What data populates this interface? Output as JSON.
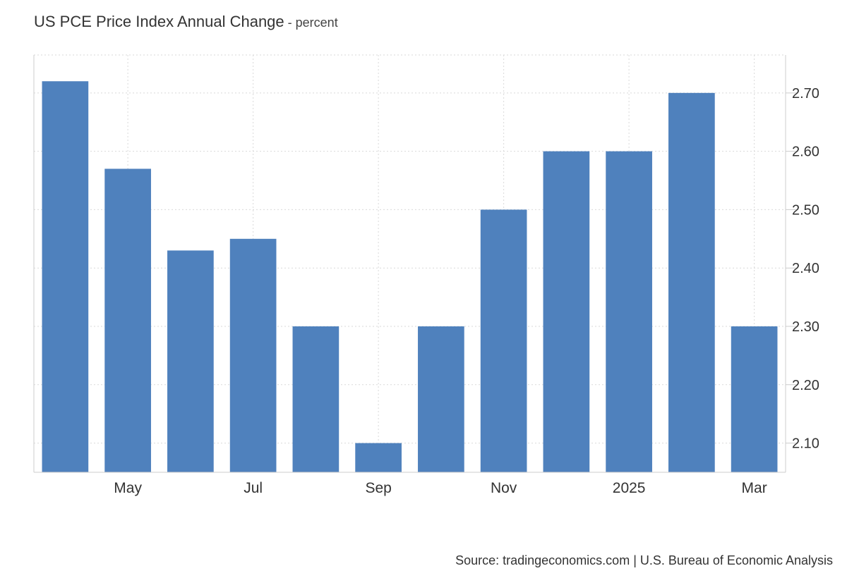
{
  "header": {
    "title": "US PCE Price Index Annual Change",
    "separator": " - ",
    "subtitle": "percent"
  },
  "source": "Source: tradingeconomics.com | U.S. Bureau of Economic Analysis",
  "colors": {
    "bar": "#4f81bd",
    "grid": "#d9d9d9",
    "axis": "#cccccc"
  },
  "chart_data": {
    "type": "bar",
    "title": "US PCE Price Index Annual Change",
    "subtitle": "percent",
    "categories": [
      "2024-04",
      "2024-05",
      "2024-06",
      "2024-07",
      "2024-08",
      "2024-09",
      "2024-10",
      "2024-11",
      "2024-12",
      "2025-01",
      "2025-02",
      "2025-03"
    ],
    "values": [
      2.72,
      2.57,
      2.43,
      2.45,
      2.3,
      2.1,
      2.3,
      2.5,
      2.6,
      2.6,
      2.7,
      2.3
    ],
    "x_tick_labels": [
      {
        "category": "2024-05",
        "label": "May"
      },
      {
        "category": "2024-07",
        "label": "Jul"
      },
      {
        "category": "2024-09",
        "label": "Sep"
      },
      {
        "category": "2024-11",
        "label": "Nov"
      },
      {
        "category": "2025-01",
        "label": "2025"
      },
      {
        "category": "2025-03",
        "label": "Mar"
      }
    ],
    "y_ticks": [
      2.1,
      2.2,
      2.3,
      2.4,
      2.5,
      2.6,
      2.7
    ],
    "y_tick_labels": [
      "2.10",
      "2.20",
      "2.30",
      "2.40",
      "2.50",
      "2.60",
      "2.70"
    ],
    "ylim": [
      2.05,
      2.765
    ],
    "y_axis_position": "right",
    "grid": true,
    "legend": "none"
  }
}
